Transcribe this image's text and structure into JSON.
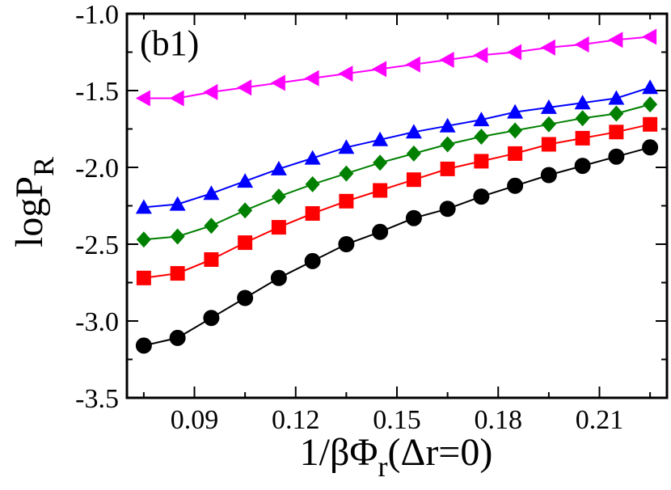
{
  "chart_data": {
    "type": "line",
    "panel_label": "(b1)",
    "xlabel": {
      "main": "1/βΦ",
      "sub": "r",
      "tail": "(Δr=0)"
    },
    "ylabel": {
      "main": "logP",
      "sub": "R"
    },
    "xlim": [
      0.07,
      0.23
    ],
    "ylim": [
      -3.5,
      -1.0
    ],
    "xticks": [
      0.09,
      0.12,
      0.15,
      0.18,
      0.21
    ],
    "xtick_labels": [
      "0.09",
      "0.12",
      "0.15",
      "0.18",
      "0.21"
    ],
    "yticks": [
      -3.5,
      -3.0,
      -2.5,
      -2.0,
      -1.5,
      -1.0
    ],
    "ytick_labels": [
      "-3.5",
      "-3.0",
      "-2.5",
      "-2.0",
      "-1.5",
      "-1.0"
    ],
    "x": [
      0.075,
      0.085,
      0.095,
      0.105,
      0.115,
      0.125,
      0.135,
      0.145,
      0.155,
      0.165,
      0.175,
      0.185,
      0.195,
      0.205,
      0.215,
      0.225
    ],
    "series": [
      {
        "name": "circle",
        "marker": "circle",
        "color": "#000000",
        "values": [
          -3.16,
          -3.11,
          -2.98,
          -2.85,
          -2.72,
          -2.61,
          -2.5,
          -2.42,
          -2.33,
          -2.27,
          -2.19,
          -2.12,
          -2.05,
          -1.99,
          -1.93,
          -1.87
        ]
      },
      {
        "name": "square",
        "marker": "square",
        "color": "#ff0000",
        "values": [
          -2.72,
          -2.69,
          -2.6,
          -2.49,
          -2.39,
          -2.3,
          -2.22,
          -2.15,
          -2.08,
          -2.01,
          -1.96,
          -1.91,
          -1.85,
          -1.81,
          -1.77,
          -1.72
        ]
      },
      {
        "name": "diamond",
        "marker": "diamond",
        "color": "#008000",
        "values": [
          -2.47,
          -2.45,
          -2.38,
          -2.28,
          -2.19,
          -2.11,
          -2.04,
          -1.97,
          -1.91,
          -1.85,
          -1.8,
          -1.76,
          -1.72,
          -1.68,
          -1.65,
          -1.59
        ]
      },
      {
        "name": "triangle-up",
        "marker": "triangle-up",
        "color": "#0000ff",
        "values": [
          -2.26,
          -2.24,
          -2.17,
          -2.09,
          -2.01,
          -1.94,
          -1.87,
          -1.82,
          -1.77,
          -1.73,
          -1.69,
          -1.64,
          -1.61,
          -1.58,
          -1.55,
          -1.48
        ]
      },
      {
        "name": "triangle-left",
        "marker": "triangle-left",
        "color": "#ff00ff",
        "values": [
          -1.55,
          -1.55,
          -1.51,
          -1.48,
          -1.45,
          -1.42,
          -1.39,
          -1.36,
          -1.33,
          -1.3,
          -1.27,
          -1.25,
          -1.22,
          -1.2,
          -1.17,
          -1.15
        ]
      }
    ]
  }
}
